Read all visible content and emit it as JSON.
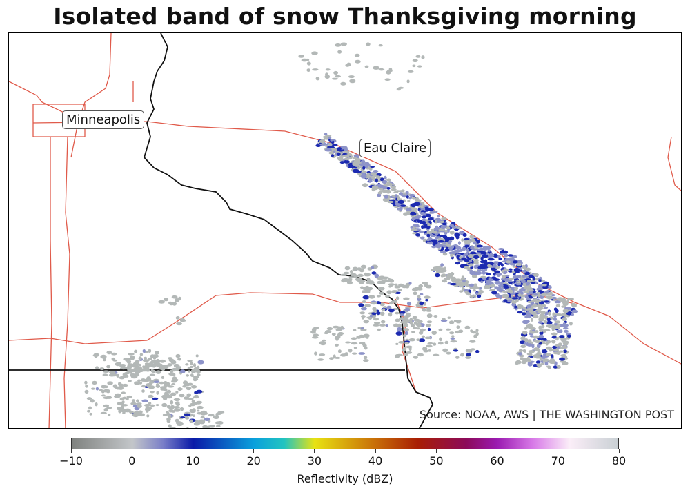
{
  "title": "Isolated band of snow Thanksgiving morning",
  "source": "Source: NOAA, AWS | THE WASHINGTON POST",
  "cities": [
    {
      "name": "Minneapolis"
    },
    {
      "name": "Eau Claire"
    }
  ],
  "colorbar": {
    "label": "Reflectivity (dBZ)",
    "min": -10,
    "max": 80,
    "ticks": [
      "−10",
      "0",
      "10",
      "20",
      "30",
      "40",
      "50",
      "60",
      "70",
      "80"
    ],
    "colormap": [
      {
        "value": -10,
        "color": "#7f827f"
      },
      {
        "value": 0,
        "color": "#c3c6c9"
      },
      {
        "value": 5,
        "color": "#7a7fc8"
      },
      {
        "value": 10,
        "color": "#0a1aa8"
      },
      {
        "value": 20,
        "color": "#0aa0dc"
      },
      {
        "value": 25,
        "color": "#22c4c0"
      },
      {
        "value": 30,
        "color": "#e8e212"
      },
      {
        "value": 40,
        "color": "#c86e08"
      },
      {
        "value": 47,
        "color": "#a81e04"
      },
      {
        "value": 55,
        "color": "#8c0a5a"
      },
      {
        "value": 60,
        "color": "#9a1ab0"
      },
      {
        "value": 66,
        "color": "#d87ae8"
      },
      {
        "value": 72,
        "color": "#fbeef8"
      },
      {
        "value": 80,
        "color": "#c9d0d4"
      }
    ]
  },
  "colors": {
    "roads": "#e05a4a",
    "state_border": "#111111",
    "light_echo": "#b3b8b7",
    "moderate_echo": "#8d93c9",
    "heavy_echo": "#1c2ab0"
  }
}
